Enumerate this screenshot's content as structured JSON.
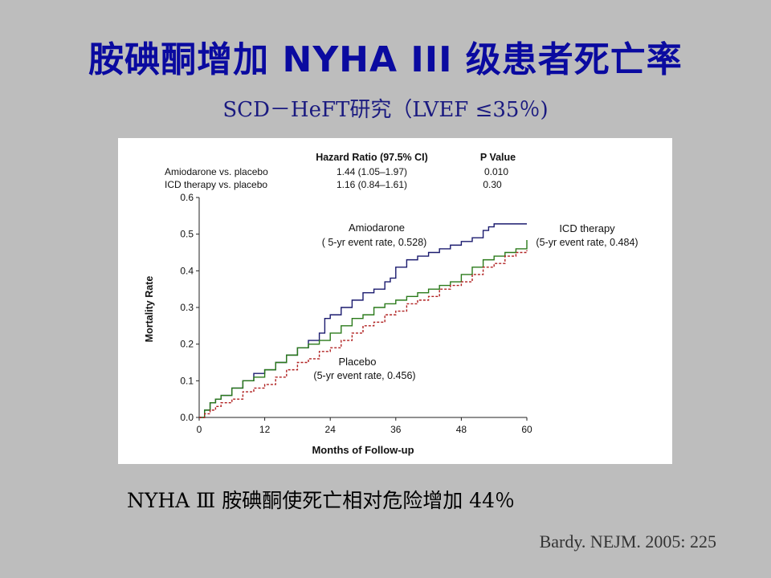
{
  "slide": {
    "title": "胺碘酮增加 NYHA III 级患者死亡率",
    "subtitle": "SCD－HeFT研究（LVEF ≤35％)",
    "conclusion": "NYHA Ⅲ  胺碘酮使死亡相对危险增加 44％",
    "citation": "Bardy. NEJM. 2005: 225"
  },
  "chart_data": {
    "type": "line",
    "xlabel": "Months of Follow-up",
    "ylabel": "Mortality Rate",
    "xlim": [
      0,
      60
    ],
    "ylim": [
      0,
      0.6
    ],
    "xticks": [
      "0",
      "12",
      "24",
      "36",
      "48",
      "60"
    ],
    "yticks": [
      "0.0",
      "0.1",
      "0.2",
      "0.3",
      "0.4",
      "0.5",
      "0.6"
    ],
    "table": {
      "headers": [
        "",
        "Hazard Ratio (97.5% CI)",
        "P Value"
      ],
      "rows": [
        [
          "Amiodarone vs. placebo",
          "1.44 (1.05–1.97)",
          "0.010"
        ],
        [
          "ICD therapy vs. placebo",
          "1.16 (0.84–1.61)",
          "0.30"
        ]
      ]
    },
    "annotations": {
      "amiodarone_name": "Amiodarone",
      "amiodarone_rate": "( 5-yr event rate, 0.528)",
      "icd_name": "ICD therapy",
      "icd_rate": "(5-yr event rate, 0.484)",
      "placebo_name": "Placebo",
      "placebo_rate": "(5-yr event rate, 0.456)"
    },
    "series": [
      {
        "name": "Amiodarone",
        "color": "#1a1a6e",
        "dash": false,
        "x": [
          0,
          1,
          2,
          3,
          4,
          6,
          8,
          10,
          12,
          14,
          16,
          18,
          20,
          22,
          23,
          24,
          26,
          28,
          30,
          32,
          34,
          35,
          36,
          38,
          40,
          42,
          44,
          46,
          48,
          50,
          52,
          53,
          54,
          56,
          58,
          60
        ],
        "y": [
          0,
          0.02,
          0.04,
          0.05,
          0.06,
          0.08,
          0.1,
          0.12,
          0.13,
          0.15,
          0.17,
          0.19,
          0.21,
          0.23,
          0.27,
          0.28,
          0.3,
          0.32,
          0.34,
          0.35,
          0.37,
          0.38,
          0.41,
          0.43,
          0.44,
          0.45,
          0.46,
          0.47,
          0.48,
          0.49,
          0.51,
          0.52,
          0.528,
          0.528,
          0.528,
          0.528
        ]
      },
      {
        "name": "ICD therapy",
        "color": "#2a7a1a",
        "dash": false,
        "x": [
          0,
          1,
          2,
          3,
          4,
          6,
          8,
          10,
          12,
          14,
          16,
          18,
          20,
          22,
          24,
          26,
          28,
          30,
          32,
          34,
          36,
          38,
          40,
          42,
          44,
          46,
          48,
          50,
          52,
          54,
          56,
          58,
          60
        ],
        "y": [
          0,
          0.02,
          0.04,
          0.05,
          0.06,
          0.08,
          0.1,
          0.11,
          0.13,
          0.15,
          0.17,
          0.19,
          0.2,
          0.21,
          0.23,
          0.25,
          0.27,
          0.28,
          0.3,
          0.31,
          0.32,
          0.33,
          0.34,
          0.35,
          0.36,
          0.37,
          0.39,
          0.41,
          0.43,
          0.44,
          0.45,
          0.46,
          0.484
        ]
      },
      {
        "name": "Placebo",
        "color": "#b02020",
        "dash": true,
        "x": [
          0,
          1,
          2,
          3,
          4,
          6,
          8,
          10,
          12,
          14,
          16,
          18,
          20,
          22,
          24,
          26,
          28,
          30,
          32,
          34,
          36,
          38,
          40,
          42,
          44,
          46,
          48,
          50,
          52,
          54,
          56,
          58,
          60
        ],
        "y": [
          0,
          0.01,
          0.02,
          0.03,
          0.04,
          0.05,
          0.07,
          0.08,
          0.09,
          0.11,
          0.13,
          0.15,
          0.16,
          0.18,
          0.19,
          0.21,
          0.23,
          0.25,
          0.26,
          0.28,
          0.29,
          0.31,
          0.32,
          0.33,
          0.35,
          0.36,
          0.37,
          0.39,
          0.41,
          0.42,
          0.44,
          0.45,
          0.456
        ]
      }
    ]
  }
}
